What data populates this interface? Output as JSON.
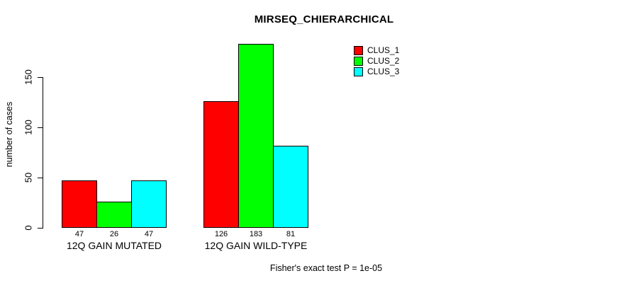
{
  "chart_data": {
    "type": "bar",
    "title": "MIRSEQ_CHIERARCHICAL",
    "ylabel": "number of cases",
    "xlabel": "",
    "categories": [
      "12Q GAIN MUTATED",
      "12Q GAIN WILD-TYPE"
    ],
    "series": [
      {
        "name": "CLUS_1",
        "color": "#ff0000",
        "values": [
          47,
          126
        ]
      },
      {
        "name": "CLUS_2",
        "color": "#00ff00",
        "values": [
          26,
          183
        ]
      },
      {
        "name": "CLUS_3",
        "color": "#00ffff",
        "values": [
          47,
          81
        ]
      }
    ],
    "bar_value_labels": [
      [
        47,
        26,
        47
      ],
      [
        126,
        183,
        81
      ]
    ],
    "yticks": [
      0,
      50,
      100,
      150
    ],
    "ylim": [
      0,
      190
    ],
    "grid": false,
    "legend_position": "top-right",
    "bar_border_color": "#000000",
    "text_color": "#000000",
    "background_color": "#ffffff",
    "annotation": "Fisher's exact test P = 1e-05"
  }
}
